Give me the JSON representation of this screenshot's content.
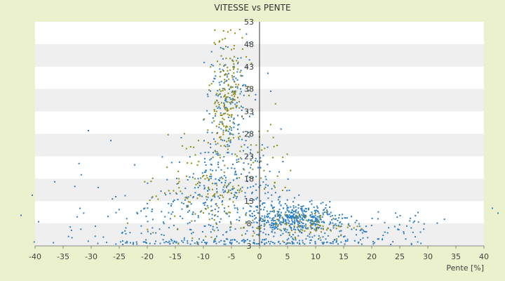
{
  "chart_data": {
    "type": "scatter",
    "title": "VITESSE vs PENTE",
    "xlabel": "Pente [%]",
    "ylabel": "",
    "xlim": [
      -40,
      40
    ],
    "ylim": [
      3,
      53
    ],
    "x_ticks": [
      "-40",
      "-35",
      "-30",
      "-25",
      "-20",
      "-15",
      "-10",
      "-5",
      "0",
      "5",
      "10",
      "15",
      "20",
      "25",
      "30",
      "35",
      "40"
    ],
    "y_ticks": [
      "3",
      "8",
      "13",
      "18",
      "23",
      "28",
      "33",
      "38",
      "43",
      "48",
      "53"
    ],
    "grid": "horizontal bands",
    "legend": "none",
    "colors": {
      "background": "#ebf1cc",
      "plot_band_light": "#ffffff",
      "plot_band_dark": "#efefef",
      "series_blue": "#2d7fc4",
      "series_olive": "#8c8c14",
      "axis": "#333333"
    },
    "series": [
      {
        "color_key": "series_blue",
        "clusters": [
          {
            "x_mean": 0,
            "x_sd": 14,
            "y_mean": 3.8,
            "y_sd": 0.5,
            "n": 140
          },
          {
            "x_mean": -5.5,
            "x_sd": 1.8,
            "y_mean": 34,
            "y_sd": 7,
            "n": 170
          },
          {
            "x_mean": -8,
            "x_sd": 5,
            "y_mean": 15,
            "y_sd": 6,
            "n": 260
          },
          {
            "x_mean": 6,
            "x_sd": 4,
            "y_mean": 9,
            "y_sd": 1.8,
            "n": 420
          },
          {
            "x_mean": 15,
            "x_sd": 8,
            "y_mean": 7.5,
            "y_sd": 1.8,
            "n": 120
          },
          {
            "x_mean": -22,
            "x_sd": 8,
            "y_mean": 8,
            "y_sd": 4,
            "n": 90
          },
          {
            "x_mean": 1,
            "x_sd": 2.5,
            "y_mean": 15,
            "y_sd": 6,
            "n": 60
          }
        ],
        "points": [
          [
            -40.5,
            14.3
          ],
          [
            -30.5,
            28.7
          ],
          [
            -26.5,
            26.5
          ],
          [
            -36.5,
            17.3
          ],
          [
            -42.5,
            9.8
          ],
          [
            42.5,
            10.3
          ],
          [
            41.5,
            11.4
          ],
          [
            -1.8,
            44.5
          ],
          [
            1.5,
            41.5
          ],
          [
            2.0,
            37.5
          ],
          [
            -41.5,
            2.8
          ]
        ]
      },
      {
        "color_key": "series_olive",
        "clusters": [
          {
            "x_mean": -5.8,
            "x_sd": 1.5,
            "y_mean": 36,
            "y_sd": 8,
            "n": 190
          },
          {
            "x_mean": -10,
            "x_sd": 4.5,
            "y_mean": 15,
            "y_sd": 6,
            "n": 120
          },
          {
            "x_mean": 7,
            "x_sd": 5,
            "y_mean": 7.5,
            "y_sd": 1.6,
            "n": 90
          },
          {
            "x_mean": 2,
            "x_sd": 2,
            "y_mean": 22,
            "y_sd": 6,
            "n": 30
          }
        ],
        "points": [
          [
            -6.0,
            47.5
          ],
          [
            -5.0,
            46.8
          ],
          [
            -4.5,
            45.2
          ]
        ]
      }
    ]
  }
}
